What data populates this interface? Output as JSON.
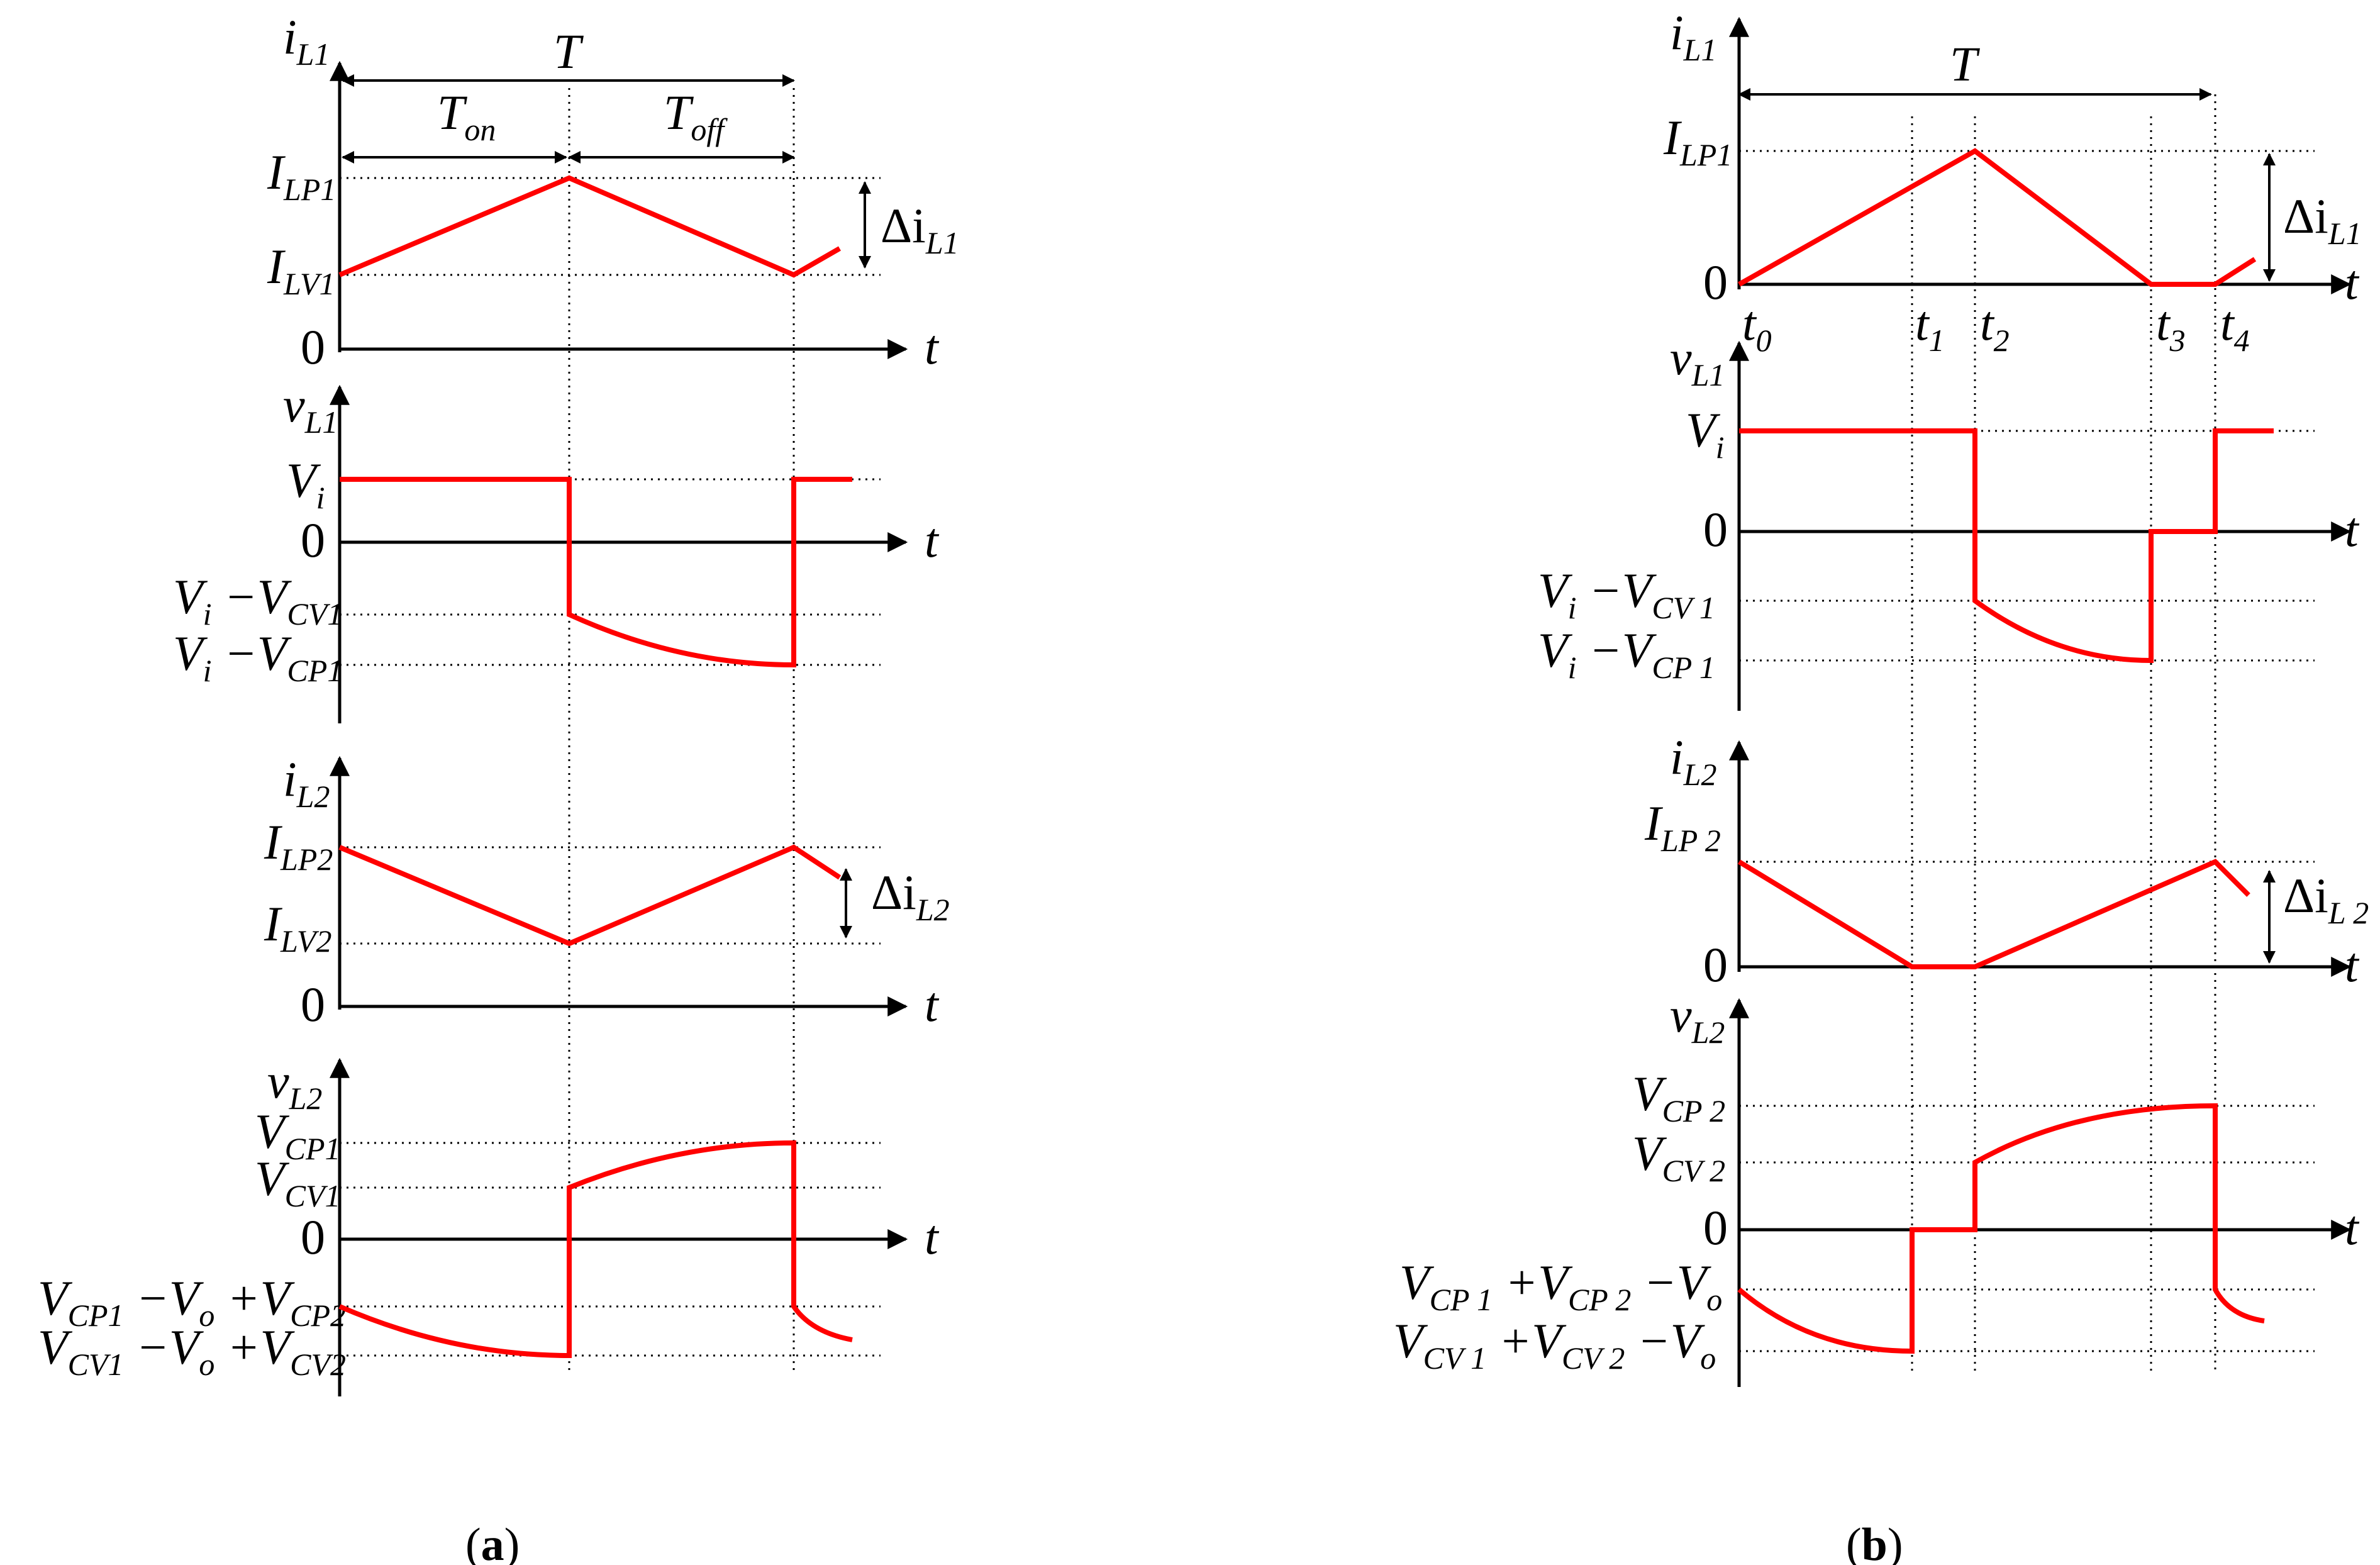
{
  "panels": {
    "a": {
      "caption": {
        "open": "(",
        "letter": "a",
        "close": ")"
      },
      "period": {
        "T": "T",
        "Ton": "T",
        "Ton_sub": "on",
        "Toff": "T",
        "Toff_sub": "off"
      },
      "plots": [
        {
          "y_var": "i",
          "y_sub": "L1",
          "t": "t",
          "levels": [
            {
              "main": "I",
              "sub": "LP1"
            },
            {
              "main": "I",
              "sub": "LV1"
            },
            {
              "main": "0",
              "sub": ""
            }
          ],
          "delta": {
            "main": "Δi",
            "sub": "L1"
          }
        },
        {
          "y_var": "v",
          "y_sub": "L1",
          "t": "t",
          "levels": [
            {
              "main": "V",
              "sub": "i"
            },
            {
              "main": "0",
              "sub": ""
            },
            {
              "parts": [
                "V",
                "i",
                " −V",
                "CV1"
              ]
            },
            {
              "parts": [
                "V",
                "i",
                " −V",
                "CP1"
              ]
            }
          ]
        },
        {
          "y_var": "i",
          "y_sub": "L2",
          "t": "t",
          "levels": [
            {
              "main": "I",
              "sub": "LP2"
            },
            {
              "main": "I",
              "sub": "LV2"
            },
            {
              "main": "0",
              "sub": ""
            }
          ],
          "delta": {
            "main": "Δi",
            "sub": "L2"
          }
        },
        {
          "y_var": "v",
          "y_sub": "L2",
          "t": "t",
          "levels": [
            {
              "main": "V",
              "sub": "CP1"
            },
            {
              "main": "V",
              "sub": "CV1"
            },
            {
              "main": "0",
              "sub": ""
            },
            {
              "parts": [
                "V",
                "CP1",
                " −V",
                "o",
                " +V",
                "CP2"
              ]
            },
            {
              "parts": [
                "V",
                "CV1",
                " −V",
                "o",
                " +V",
                "CV2"
              ]
            }
          ]
        }
      ]
    },
    "b": {
      "caption": {
        "open": "(",
        "letter": "b",
        "close": ")"
      },
      "period": {
        "T": "T"
      },
      "time_marks": [
        {
          "main": "t",
          "sub": "0"
        },
        {
          "main": "t",
          "sub": "1"
        },
        {
          "main": "t",
          "sub": "2"
        },
        {
          "main": "t",
          "sub": "3"
        },
        {
          "main": "t",
          "sub": "4"
        }
      ],
      "plots": [
        {
          "y_var": "i",
          "y_sub": "L1",
          "t": "t",
          "levels": [
            {
              "main": "I",
              "sub": "LP1"
            },
            {
              "main": "0",
              "sub": ""
            }
          ],
          "delta": {
            "main": "Δi",
            "sub": "L1"
          }
        },
        {
          "y_var": "v",
          "y_sub": "L1",
          "t": "t",
          "levels": [
            {
              "main": "V",
              "sub": "i"
            },
            {
              "main": "0",
              "sub": ""
            },
            {
              "parts": [
                "V",
                "i",
                " −V",
                "CV 1"
              ]
            },
            {
              "parts": [
                "V",
                "i",
                " −V",
                "CP 1"
              ]
            }
          ]
        },
        {
          "y_var": "i",
          "y_sub": "L2",
          "t": "t",
          "levels": [
            {
              "main": "I",
              "sub": "LP 2"
            },
            {
              "main": "0",
              "sub": ""
            }
          ],
          "delta": {
            "main": "Δi",
            "sub": "L 2"
          }
        },
        {
          "y_var": "v",
          "y_sub": "L2",
          "t": "t",
          "levels": [
            {
              "main": "V",
              "sub": "CP 2"
            },
            {
              "main": "V",
              "sub": "CV 2"
            },
            {
              "main": "0",
              "sub": ""
            },
            {
              "parts": [
                "V",
                "CP 1",
                " +V",
                "CP 2",
                " −V",
                "o"
              ]
            },
            {
              "parts": [
                "V",
                "CV 1",
                " +V",
                "CV 2",
                " −V",
                "o"
              ]
            }
          ]
        }
      ]
    }
  },
  "colors": {
    "waveform": "#ff0000",
    "axes": "#000000"
  }
}
